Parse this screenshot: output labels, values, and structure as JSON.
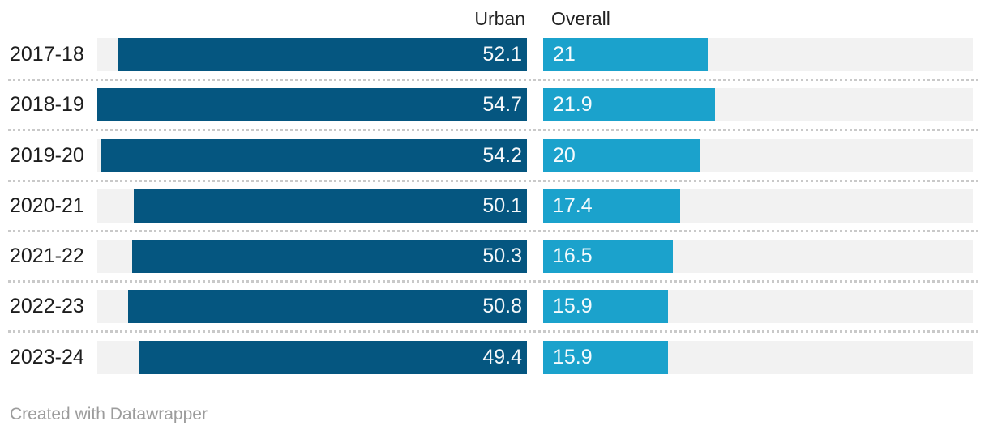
{
  "header": {
    "urban_label": "Urban",
    "overall_label": "Overall"
  },
  "footer": {
    "credit": "Created with Datawrapper"
  },
  "colors": {
    "urban_bar": "#055680",
    "overall_bar": "#1ba2cc",
    "bar_track": "#f2f2f2",
    "row_separator_dots": "#c9c9c9",
    "category_text": "#1d1d1d",
    "header_text": "#222222",
    "value_text": "#ffffff",
    "credit_text": "#9c9c9c",
    "background": "#ffffff"
  },
  "chart_data": {
    "type": "bar",
    "orientation": "horizontal",
    "categories": [
      "2017-18",
      "2018-19",
      "2019-20",
      "2020-21",
      "2021-22",
      "2022-23",
      "2023-24"
    ],
    "series": [
      {
        "name": "Urban",
        "values": [
          52.1,
          54.7,
          54.2,
          50.1,
          50.3,
          50.8,
          49.4
        ],
        "color": "#055680",
        "bar_alignment": "right"
      },
      {
        "name": "Overall",
        "values": [
          21,
          21.9,
          20,
          17.4,
          16.5,
          15.9,
          15.9
        ],
        "color": "#1ba2cc",
        "bar_alignment": "left"
      }
    ],
    "xlim": [
      0,
      54.7
    ],
    "value_labels_inside_bars": true,
    "grid": false,
    "legend_position": "column-headers",
    "row_separators": "dotted"
  }
}
